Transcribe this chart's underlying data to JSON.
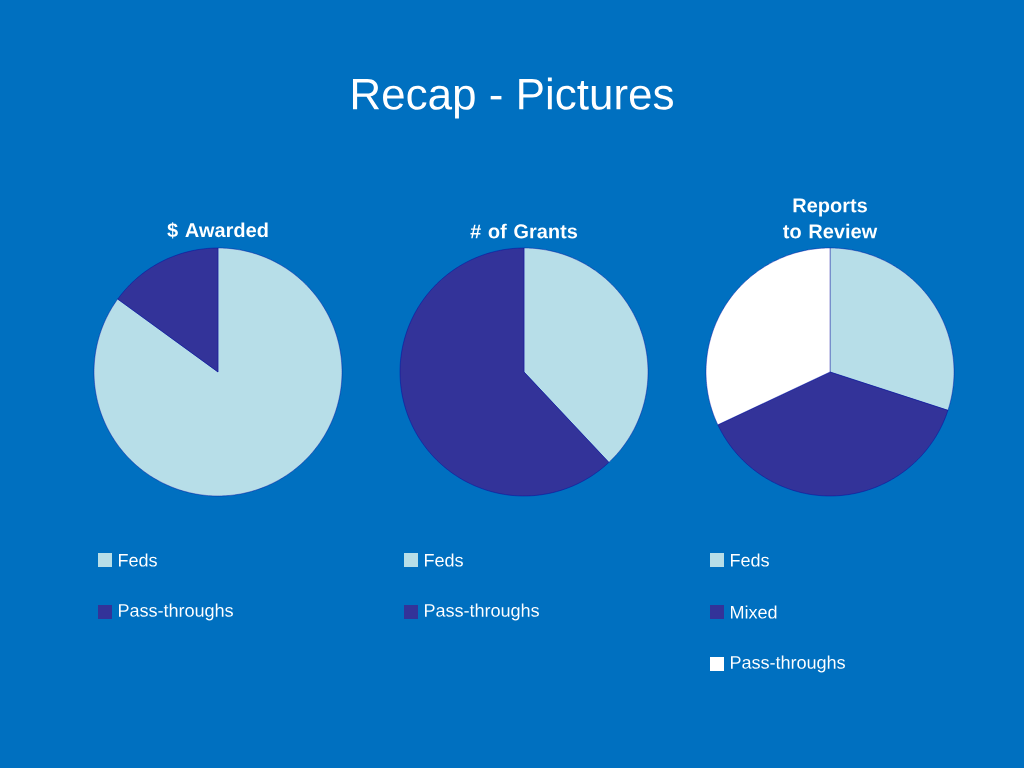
{
  "chart_data": [
    {
      "type": "pie",
      "title": "$ Awarded",
      "annotations": [
        "Recap - Pictures"
      ],
      "categories": [
        "Feds",
        "Pass-throughs"
      ],
      "values": [
        85,
        15
      ],
      "colors": [
        "#b7dee8",
        "#333399"
      ],
      "legend": "bottom"
    },
    {
      "type": "pie",
      "title": "# of Grants",
      "categories": [
        "Feds",
        "Pass-throughs"
      ],
      "values": [
        38,
        62
      ],
      "colors": [
        "#b7dee8",
        "#333399"
      ],
      "legend": "bottom"
    },
    {
      "type": "pie",
      "title": "Reports to Review",
      "categories": [
        "Feds",
        "Mixed",
        "Pass-throughs"
      ],
      "values": [
        30,
        38,
        32
      ],
      "colors": [
        "#b7dee8",
        "#333399",
        "#ffffff"
      ],
      "legend": "bottom"
    }
  ]
}
